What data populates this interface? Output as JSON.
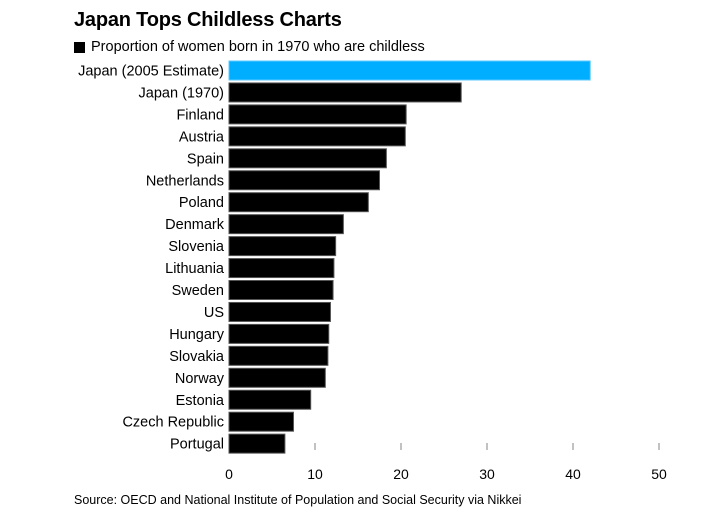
{
  "chart_data": {
    "type": "bar",
    "orientation": "horizontal",
    "title": "Japan Tops Childless Charts",
    "legend": [
      {
        "label": "Proportion of women born in 1970 who are childless",
        "color": "#000000"
      }
    ],
    "legend_placement": "top-left",
    "categories": [
      "Japan (2005 Estimate)",
      "Japan (1970)",
      "Finland",
      "Austria",
      "Spain",
      "Netherlands",
      "Poland",
      "Denmark",
      "Slovenia",
      "Lithuania",
      "Sweden",
      "US",
      "Hungary",
      "Slovakia",
      "Norway",
      "Estonia",
      "Czech Republic",
      "Portugal"
    ],
    "values": [
      42,
      27,
      20.6,
      20.5,
      18.3,
      17.5,
      16.2,
      13.3,
      12.4,
      12.2,
      12.1,
      11.8,
      11.6,
      11.5,
      11.2,
      9.5,
      7.5,
      6.5
    ],
    "highlight_index": 0,
    "highlight_color": "#00aeff",
    "bar_color": "#000000",
    "xlabel": "",
    "ylabel": "",
    "xlim": [
      0,
      50
    ],
    "xticks": [
      0,
      10,
      20,
      30,
      40,
      50
    ],
    "grid": false,
    "source": "Source: OECD and National Institute of Population and Social Security via Nikkei"
  }
}
